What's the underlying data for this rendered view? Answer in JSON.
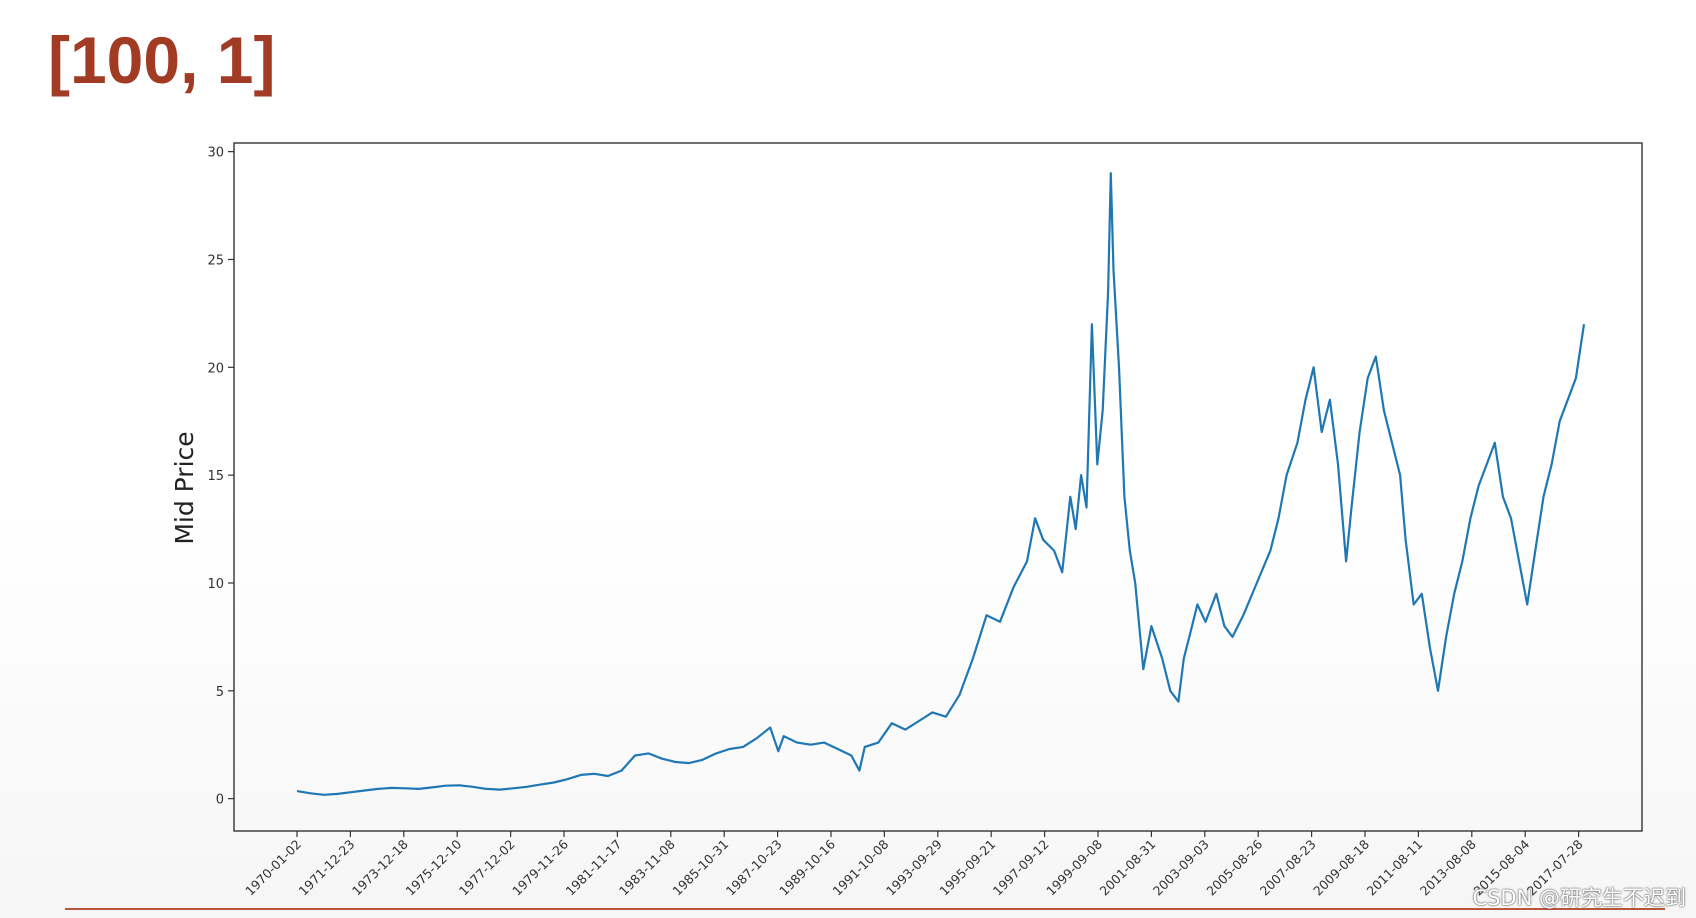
{
  "slide": {
    "title": "[100, 1]",
    "watermark": "CSDN @研究生不迟到"
  },
  "colors": {
    "title": "#a23b24",
    "series": "#1f77b4",
    "axis": "#333333",
    "rule": "#b8563f"
  },
  "chart_data": {
    "type": "line",
    "title": "",
    "xlabel": "",
    "ylabel": "Mid Price",
    "ylim": [
      -1.5,
      30.4
    ],
    "yticks": [
      0,
      5,
      10,
      15,
      20,
      25,
      30
    ],
    "grid": false,
    "legend": "none",
    "xticks": [
      "1970-01-02",
      "1971-12-23",
      "1973-12-18",
      "1975-12-10",
      "1977-12-02",
      "1979-11-26",
      "1981-11-17",
      "1983-11-08",
      "1985-10-31",
      "1987-10-23",
      "1989-10-16",
      "1991-10-08",
      "1993-09-29",
      "1995-09-21",
      "1997-09-12",
      "1999-09-08",
      "2001-08-31",
      "2003-09-03",
      "2005-08-26",
      "2007-08-23",
      "2009-08-18",
      "2011-08-11",
      "2013-08-08",
      "2015-08-04",
      "2017-07-28"
    ],
    "series": [
      {
        "name": "",
        "x": [
          1970.0,
          1970.5,
          1971.0,
          1971.5,
          1972.0,
          1972.5,
          1973.0,
          1973.5,
          1974.0,
          1974.5,
          1975.0,
          1975.5,
          1976.0,
          1976.5,
          1977.0,
          1977.5,
          1978.0,
          1978.5,
          1979.0,
          1979.5,
          1980.0,
          1980.5,
          1981.0,
          1981.5,
          1982.0,
          1982.5,
          1983.0,
          1983.5,
          1984.0,
          1984.5,
          1985.0,
          1985.5,
          1986.0,
          1986.5,
          1987.0,
          1987.5,
          1987.8,
          1988.0,
          1988.5,
          1989.0,
          1989.5,
          1990.0,
          1990.5,
          1990.8,
          1991.0,
          1991.5,
          1992.0,
          1992.5,
          1993.0,
          1993.5,
          1994.0,
          1994.5,
          1995.0,
          1995.5,
          1996.0,
          1996.5,
          1997.0,
          1997.3,
          1997.6,
          1998.0,
          1998.3,
          1998.6,
          1998.8,
          1999.0,
          1999.2,
          1999.4,
          1999.6,
          1999.8,
          2000.0,
          2000.1,
          2000.2,
          2000.4,
          2000.6,
          2000.8,
          2001.0,
          2001.3,
          2001.6,
          2002.0,
          2002.3,
          2002.6,
          2002.8,
          2003.0,
          2003.3,
          2003.6,
          2004.0,
          2004.3,
          2004.6,
          2005.0,
          2005.5,
          2006.0,
          2006.3,
          2006.6,
          2007.0,
          2007.3,
          2007.6,
          2007.9,
          2008.2,
          2008.5,
          2008.8,
          2009.0,
          2009.3,
          2009.6,
          2009.9,
          2010.2,
          2010.5,
          2010.8,
          2011.0,
          2011.3,
          2011.6,
          2011.9,
          2012.2,
          2012.5,
          2012.8,
          2013.1,
          2013.4,
          2013.7,
          2014.0,
          2014.3,
          2014.6,
          2014.9,
          2015.2,
          2015.5,
          2015.8,
          2016.1,
          2016.4,
          2016.7,
          2017.0,
          2017.3,
          2017.6
        ],
        "values": [
          0.35,
          0.25,
          0.18,
          0.22,
          0.3,
          0.38,
          0.45,
          0.5,
          0.48,
          0.45,
          0.52,
          0.6,
          0.62,
          0.55,
          0.45,
          0.42,
          0.48,
          0.55,
          0.65,
          0.75,
          0.9,
          1.1,
          1.15,
          1.05,
          1.3,
          2.0,
          2.1,
          1.85,
          1.7,
          1.65,
          1.8,
          2.1,
          2.3,
          2.4,
          2.8,
          3.3,
          2.2,
          2.9,
          2.6,
          2.5,
          2.6,
          2.3,
          2.0,
          1.3,
          2.4,
          2.6,
          3.5,
          3.2,
          3.6,
          4.0,
          3.8,
          4.8,
          6.5,
          8.5,
          8.2,
          9.8,
          11.0,
          13.0,
          12.0,
          11.5,
          10.5,
          14.0,
          12.5,
          15.0,
          13.5,
          22.0,
          15.5,
          18.0,
          23.5,
          29.0,
          24.5,
          20.0,
          14.0,
          11.5,
          10.0,
          6.0,
          8.0,
          6.5,
          5.0,
          4.5,
          6.5,
          7.5,
          9.0,
          8.2,
          9.5,
          8.0,
          7.5,
          8.5,
          10.0,
          11.5,
          13.0,
          15.0,
          16.5,
          18.5,
          20.0,
          17.0,
          18.5,
          15.5,
          11.0,
          13.5,
          17.0,
          19.5,
          20.5,
          18.0,
          16.5,
          15.0,
          12.0,
          9.0,
          9.5,
          7.0,
          5.0,
          7.5,
          9.5,
          11.0,
          13.0,
          14.5,
          15.5,
          16.5,
          14.0,
          13.0,
          11.0,
          9.0,
          11.5,
          14.0,
          15.5,
          17.5,
          18.5,
          19.5,
          22.0
        ]
      }
    ]
  }
}
